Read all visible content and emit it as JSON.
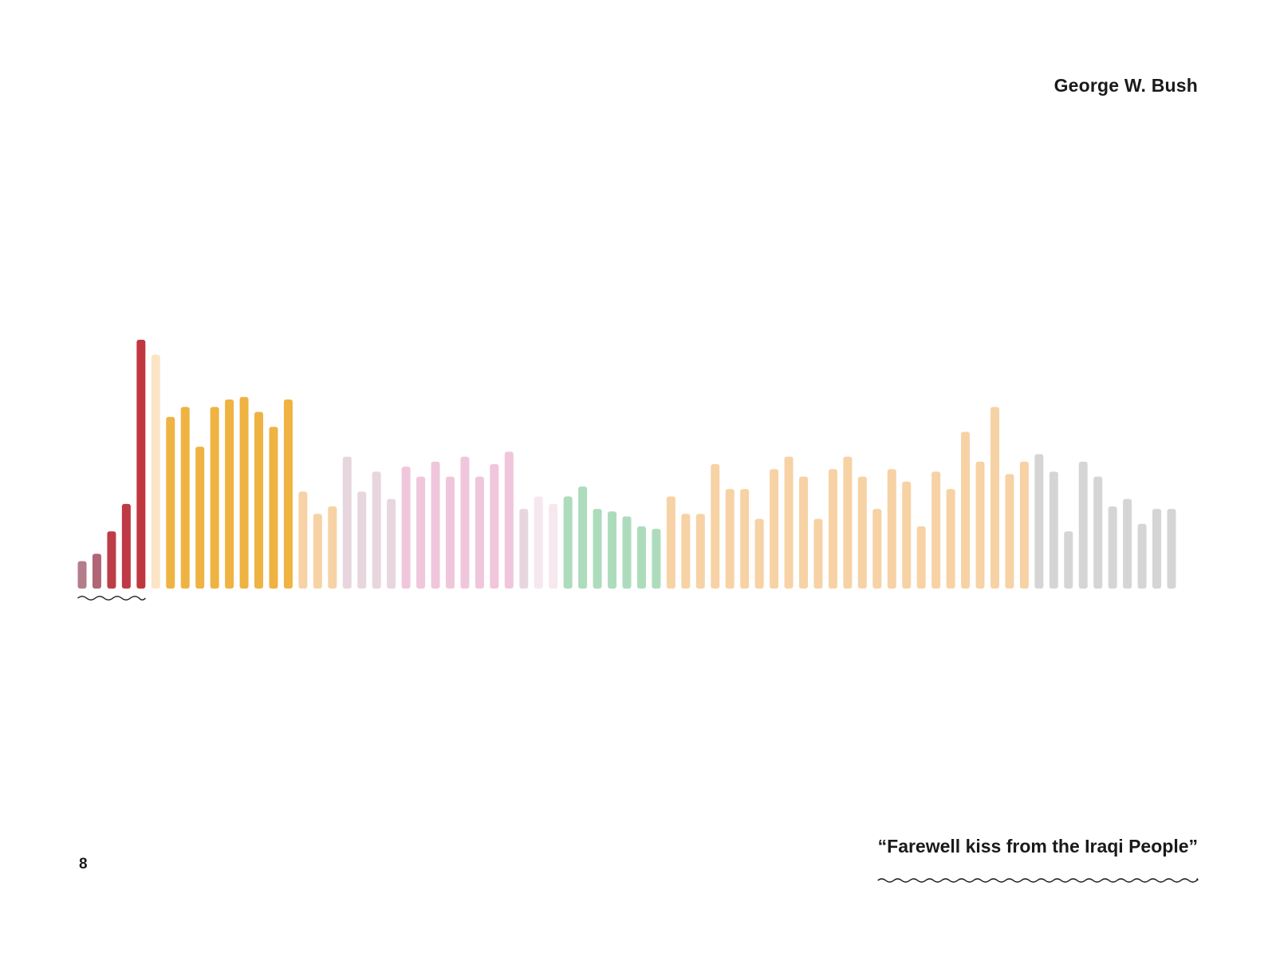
{
  "header": {
    "name": "George W. Bush"
  },
  "footer": {
    "quote": "“Farewell kiss from the Iraqi People”",
    "page_number": "8"
  },
  "chart_data": {
    "type": "bar",
    "title": "",
    "xlabel": "",
    "ylabel": "",
    "grid": false,
    "legend": "none",
    "axis_labels_shown": false,
    "ylim": [
      0,
      100
    ],
    "highlight_underline_range": [
      0,
      4
    ],
    "values": [
      11,
      14,
      23,
      34,
      100,
      94,
      69,
      73,
      57,
      73,
      76,
      77,
      71,
      65,
      76,
      39,
      30,
      33,
      53,
      39,
      47,
      36,
      49,
      45,
      51,
      45,
      53,
      45,
      50,
      55,
      32,
      37,
      34,
      37,
      41,
      32,
      31,
      29,
      25,
      24,
      37,
      30,
      30,
      50,
      40,
      40,
      28,
      48,
      53,
      45,
      28,
      48,
      53,
      45,
      32,
      48,
      43,
      25,
      47,
      40,
      63,
      51,
      73,
      46,
      51,
      54,
      47,
      23,
      51,
      45,
      33,
      36,
      26,
      32,
      32
    ],
    "colors": [
      "#b37d8c",
      "#b06677",
      "#bd3d47",
      "#bf3a44",
      "#c0383f",
      "#fde4c6",
      "#efb342",
      "#efb342",
      "#efb342",
      "#efb342",
      "#efb342",
      "#efb342",
      "#efb342",
      "#efb342",
      "#efb342",
      "#f7d2a5",
      "#f7d2a5",
      "#f7d2a5",
      "#e8d6de",
      "#e8d6de",
      "#e8d6de",
      "#e8d6de",
      "#f0c6dc",
      "#f0c6dc",
      "#f0c6dc",
      "#f0c6dc",
      "#f0c6dc",
      "#f0c6dc",
      "#f0c6dc",
      "#f0c6dc",
      "#e8d6de",
      "#f7e7ef",
      "#f7e7ef",
      "#addcbc",
      "#addcbc",
      "#addcbc",
      "#addcbc",
      "#addcbc",
      "#addcbc",
      "#addcbc",
      "#f7d2a5",
      "#f7d2a5",
      "#f7d2a5",
      "#f7d2a5",
      "#f7d2a5",
      "#f7d2a5",
      "#f7d2a5",
      "#f7d2a5",
      "#f7d2a5",
      "#f7d2a5",
      "#f7d2a5",
      "#f7d2a5",
      "#f7d2a5",
      "#f7d2a5",
      "#f7d2a5",
      "#f7d2a5",
      "#f7d2a5",
      "#f7d2a5",
      "#f7d2a5",
      "#f7d2a5",
      "#f7d2a5",
      "#f7d2a5",
      "#f7d2a5",
      "#f7d2a5",
      "#f7d2a5",
      "#d5d5d5",
      "#d5d5d5",
      "#d5d5d5",
      "#d5d5d5",
      "#d5d5d5",
      "#d5d5d5",
      "#d5d5d5",
      "#d5d5d5",
      "#d5d5d5",
      "#d5d5d5"
    ]
  }
}
